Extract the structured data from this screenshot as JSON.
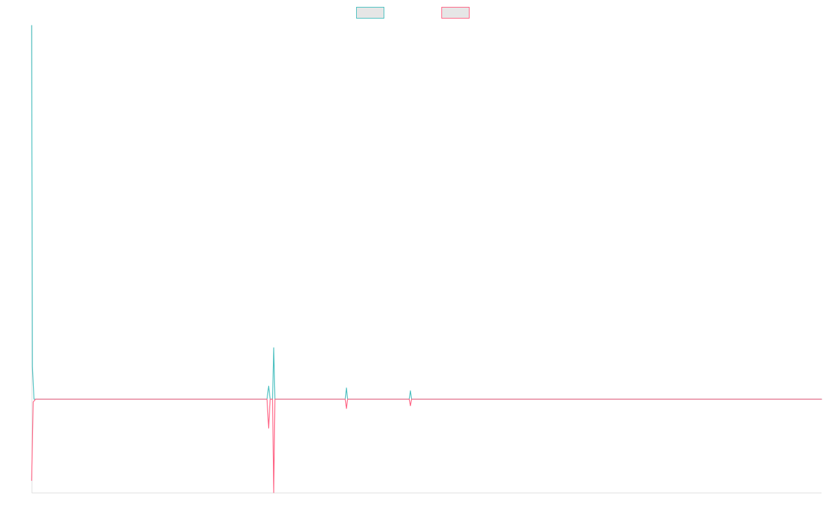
{
  "chart_data": {
    "type": "line",
    "title": "",
    "xlabel": "",
    "ylabel": "",
    "grid": false,
    "legend_position": "top-center",
    "x_range": [
      0,
      1000
    ],
    "y_range": [
      -100,
      400
    ],
    "series": [
      {
        "color": "#4bc0c0",
        "swatch_fill": "#e6e6e6",
        "points": [
          [
            0,
            400
          ],
          [
            1,
            35
          ],
          [
            3,
            0
          ],
          [
            10,
            0
          ],
          [
            298,
            0
          ],
          [
            300,
            14
          ],
          [
            302,
            0
          ],
          [
            305,
            0
          ],
          [
            306.5,
            55
          ],
          [
            308,
            0
          ],
          [
            397,
            0
          ],
          [
            398.5,
            12
          ],
          [
            400,
            0
          ],
          [
            478,
            0
          ],
          [
            479.5,
            9
          ],
          [
            481,
            0
          ],
          [
            1000,
            0
          ]
        ]
      },
      {
        "color": "#ff6384",
        "swatch_fill": "#e6e6e6",
        "points": [
          [
            0,
            -87
          ],
          [
            2,
            -3
          ],
          [
            5,
            0
          ],
          [
            10,
            0
          ],
          [
            298,
            0
          ],
          [
            300,
            -31
          ],
          [
            302,
            0
          ],
          [
            305,
            0
          ],
          [
            306.5,
            -100
          ],
          [
            308,
            0
          ],
          [
            397,
            0
          ],
          [
            398.5,
            -10
          ],
          [
            400,
            0
          ],
          [
            478,
            0
          ],
          [
            479.5,
            -7
          ],
          [
            481,
            0
          ],
          [
            1000,
            0
          ]
        ]
      }
    ]
  }
}
